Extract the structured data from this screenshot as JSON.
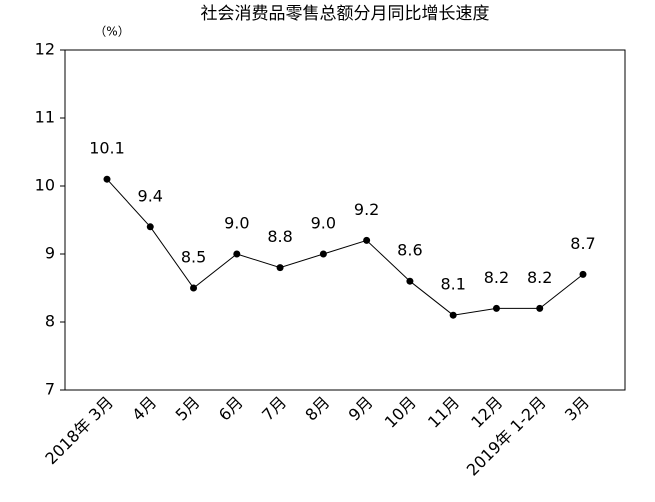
{
  "chart_data": {
    "type": "line",
    "title": "社会消费品零售总额分月同比增长速度",
    "y_unit": "（%）",
    "categories": [
      "2018年 3月",
      "4月",
      "5月",
      "6月",
      "7月",
      "8月",
      "9月",
      "10月",
      "11月",
      "12月",
      "2019年 1-2月",
      "3月"
    ],
    "values": [
      10.1,
      9.4,
      8.5,
      9.0,
      8.8,
      9.0,
      9.2,
      8.6,
      8.1,
      8.2,
      8.2,
      8.7
    ],
    "value_labels": [
      "10.1",
      "9.4",
      "8.5",
      "9.0",
      "8.8",
      "9.0",
      "9.2",
      "8.6",
      "8.1",
      "8.2",
      "8.2",
      "8.7"
    ],
    "color": "#000000",
    "ylim": [
      7,
      12
    ],
    "yticks": [
      7,
      8,
      9,
      10,
      11,
      12
    ],
    "grid": false
  }
}
